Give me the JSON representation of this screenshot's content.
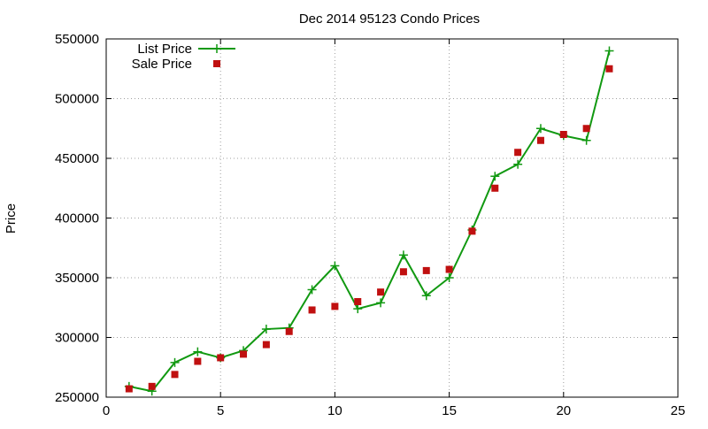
{
  "chart_data": {
    "type": "line",
    "title": "Dec 2014 95123 Condo Prices",
    "xlabel": "",
    "ylabel": "Price",
    "xlim": [
      0,
      25
    ],
    "ylim": [
      250000,
      550000
    ],
    "xticks": [
      0,
      5,
      10,
      15,
      20,
      25
    ],
    "yticks": [
      250000,
      300000,
      350000,
      400000,
      450000,
      500000,
      550000
    ],
    "grid": true,
    "legend_position": "top-left",
    "series": [
      {
        "name": "List Price",
        "style": "line+cross",
        "color": "#119911",
        "x": [
          1,
          2,
          3,
          4,
          5,
          6,
          7,
          8,
          9,
          10,
          11,
          12,
          13,
          14,
          15,
          16,
          17,
          18,
          19,
          20,
          21,
          22
        ],
        "y": [
          259000,
          255000,
          279000,
          288000,
          283000,
          289000,
          307000,
          308000,
          340000,
          360000,
          324000,
          329000,
          369000,
          335000,
          350000,
          390000,
          435000,
          445000,
          475000,
          469000,
          465000,
          540000
        ]
      },
      {
        "name": "Sale Price",
        "style": "square",
        "color": "#c01010",
        "x": [
          1,
          2,
          3,
          4,
          5,
          6,
          7,
          8,
          9,
          10,
          11,
          12,
          13,
          14,
          15,
          16,
          17,
          18,
          19,
          20,
          21,
          22
        ],
        "y": [
          257000,
          259000,
          269000,
          280000,
          283000,
          286000,
          294000,
          305000,
          323000,
          326000,
          330000,
          338000,
          355000,
          356000,
          357000,
          389000,
          425000,
          455000,
          465000,
          470000,
          475000,
          525000
        ]
      }
    ]
  }
}
